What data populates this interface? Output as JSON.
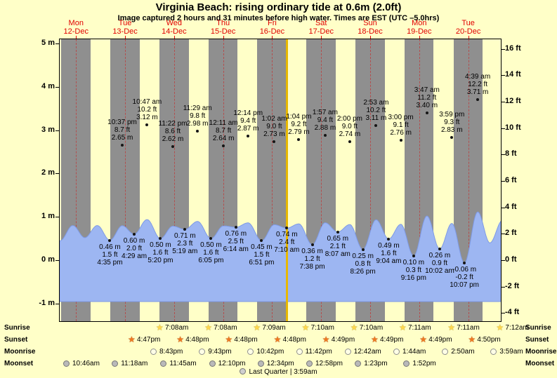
{
  "title": "Virginia Beach: rising  ordinary tide at 0.6m (2.0ft)",
  "subtitle": "Image captured 2 hours and 31 minutes before high water. Times are EST (UTC –5.0hrs)",
  "days": [
    {
      "day": "Mon",
      "date": "12-Dec"
    },
    {
      "day": "Tue",
      "date": "13-Dec"
    },
    {
      "day": "Wed",
      "date": "14-Dec"
    },
    {
      "day": "Thu",
      "date": "15-Dec"
    },
    {
      "day": "Fri",
      "date": "16-Dec"
    },
    {
      "day": "Sat",
      "date": "17-Dec"
    },
    {
      "day": "Sun",
      "date": "18-Dec"
    },
    {
      "day": "Mon",
      "date": "19-Dec"
    },
    {
      "day": "Tue",
      "date": "20-Dec"
    }
  ],
  "axes": {
    "left": [
      {
        "v": 5,
        "label": "5 m"
      },
      {
        "v": 4,
        "label": "4 m"
      },
      {
        "v": 3,
        "label": "3 m"
      },
      {
        "v": 2,
        "label": "2 m"
      },
      {
        "v": 1,
        "label": "1 m"
      },
      {
        "v": 0,
        "label": "0 m"
      },
      {
        "v": -1,
        "label": "-1 m"
      }
    ],
    "right": [
      {
        "v": 16,
        "label": "16 ft"
      },
      {
        "v": 14,
        "label": "14 ft"
      },
      {
        "v": 12,
        "label": "12 ft"
      },
      {
        "v": 10,
        "label": "10 ft"
      },
      {
        "v": 8,
        "label": "8 ft"
      },
      {
        "v": 6,
        "label": "6 ft"
      },
      {
        "v": 4,
        "label": "4 ft"
      },
      {
        "v": 2,
        "label": "2 ft"
      },
      {
        "v": 0,
        "label": "0 ft"
      },
      {
        "v": -2,
        "label": "-2 ft"
      },
      {
        "v": -4,
        "label": "-4 ft"
      }
    ]
  },
  "chart_data": {
    "type": "area",
    "title": "Virginia Beach tide height, Mon 12-Dec to Tue 20-Dec",
    "x_axis": "time in hours from Mon 12-Dec 00:00 (EST)",
    "y_axis_left": "tide height (m)",
    "y_axis_right": "tide height (ft)",
    "ylim_m": [
      -1,
      5
    ],
    "ylim_ft": [
      -4,
      16
    ],
    "now_marker_t_hours": 103.1,
    "high_tides": [
      {
        "t": 22.62,
        "h": 2.65,
        "time": "10:37 pm",
        "ft": "8.7 ft",
        "m": "2.65 m"
      },
      {
        "t": 34.78,
        "h": 3.12,
        "time": "10:47 am",
        "ft": "10.2 ft",
        "m": "3.12 m"
      },
      {
        "t": 47.37,
        "h": 2.62,
        "time": "11:22 pm",
        "ft": "8.6 ft",
        "m": "2.62 m"
      },
      {
        "t": 59.48,
        "h": 2.98,
        "time": "11:29 am",
        "ft": "9.8 ft",
        "m": "2.98 m"
      },
      {
        "t": 72.18,
        "h": 2.64,
        "time": "12:11 am",
        "ft": "8.7 ft",
        "m": "2.64 m"
      },
      {
        "t": 84.23,
        "h": 2.87,
        "time": "12:14 pm",
        "ft": "9.4 ft",
        "m": "2.87 m"
      },
      {
        "t": 97.03,
        "h": 2.73,
        "time": "1:02 am",
        "ft": "9.0 ft",
        "m": "2.73 m"
      },
      {
        "t": 109.07,
        "h": 2.79,
        "time": "1:04 pm",
        "ft": "9.2 ft",
        "m": "2.79 m"
      },
      {
        "t": 121.95,
        "h": 2.88,
        "time": "1:57 am",
        "ft": "9.4 ft",
        "m": "2.88 m"
      },
      {
        "t": 134.0,
        "h": 2.74,
        "time": "2:00 pm",
        "ft": "9.0 ft",
        "m": "2.74 m"
      },
      {
        "t": 146.88,
        "h": 3.11,
        "time": "2:53 am",
        "ft": "10.2 ft",
        "m": "3.11 m"
      },
      {
        "t": 159.0,
        "h": 2.76,
        "time": "3:00 pm",
        "ft": "9.1 ft",
        "m": "2.76 m"
      },
      {
        "t": 171.78,
        "h": 3.4,
        "time": "3:47 am",
        "ft": "11.2 ft",
        "m": "3.40 m"
      },
      {
        "t": 183.98,
        "h": 2.83,
        "time": "3:59 pm",
        "ft": "9.3 ft",
        "m": "2.83 m"
      },
      {
        "t": 196.65,
        "h": 3.71,
        "time": "4:39 am",
        "ft": "12.2 ft",
        "m": "3.71 m"
      }
    ],
    "low_tides": [
      {
        "t": 16.58,
        "h": 0.46,
        "m": "0.46 m",
        "ft": "1.5 ft",
        "time": "4:35 pm"
      },
      {
        "t": 28.48,
        "h": 0.6,
        "m": "0.60 m",
        "ft": "2.0 ft",
        "time": "4:29 am"
      },
      {
        "t": 41.33,
        "h": 0.5,
        "m": "0.50 m",
        "ft": "1.6 ft",
        "time": "5:20 pm"
      },
      {
        "t": 53.32,
        "h": 0.71,
        "m": "0.71 m",
        "ft": "2.3 ft",
        "time": "5:19 am"
      },
      {
        "t": 66.08,
        "h": 0.5,
        "m": "0.50 m",
        "ft": "1.6 ft",
        "time": "6:05 pm"
      },
      {
        "t": 78.23,
        "h": 0.76,
        "m": "0.76 m",
        "ft": "2.5 ft",
        "time": "6:14 am"
      },
      {
        "t": 90.85,
        "h": 0.45,
        "m": "0.45 m",
        "ft": "1.5 ft",
        "time": "6:51 pm"
      },
      {
        "t": 103.17,
        "h": 0.74,
        "m": "0.74 m",
        "ft": "2.4 ft",
        "time": "7:10 am"
      },
      {
        "t": 115.63,
        "h": 0.36,
        "m": "0.36 m",
        "ft": "1.2 ft",
        "time": "7:38 pm"
      },
      {
        "t": 128.12,
        "h": 0.65,
        "m": "0.65 m",
        "ft": "2.1 ft",
        "time": "8:07 am"
      },
      {
        "t": 140.43,
        "h": 0.25,
        "m": "0.25 m",
        "ft": "0.8 ft",
        "time": "8:26 pm"
      },
      {
        "t": 153.07,
        "h": 0.49,
        "m": "0.49 m",
        "ft": "1.6 ft",
        "time": "9:04 am"
      },
      {
        "t": 165.27,
        "h": 0.1,
        "m": "0.10 m",
        "ft": "0.3 ft",
        "time": "9:16 pm"
      },
      {
        "t": 178.03,
        "h": 0.26,
        "m": "0.26 m",
        "ft": "0.9 ft",
        "time": "10:02 am"
      },
      {
        "t": 190.12,
        "h": -0.06,
        "m": "-0.06 m",
        "ft": "-0.2 ft",
        "time": "10:07 pm"
      }
    ]
  },
  "astro": {
    "rows": [
      {
        "label": "Sunrise",
        "icon": "sunrise-star-icon",
        "times": [
          "7:08am",
          "7:08am",
          "7:09am",
          "7:10am",
          "7:10am",
          "7:11am",
          "7:11am",
          "7:12am"
        ]
      },
      {
        "label": "Sunset",
        "icon": "sunset-star-icon",
        "times": [
          "4:47pm",
          "4:48pm",
          "4:48pm",
          "4:48pm",
          "4:49pm",
          "4:49pm",
          "4:49pm",
          "4:50pm"
        ]
      },
      {
        "label": "Moonrise",
        "icon": "moonrise-circle-icon",
        "times": [
          "8:43pm",
          "9:43pm",
          "10:42pm",
          "11:42pm",
          "12:42am",
          "1:44am",
          "2:50am",
          "3:59am"
        ]
      },
      {
        "label": "Moonset",
        "icon": "moonset-circle-icon",
        "times": [
          "10:46am",
          "11:18am",
          "11:45am",
          "12:10pm",
          "12:34pm",
          "12:58pm",
          "1:23pm",
          "1:52pm"
        ]
      }
    ],
    "moon_phase": "Last Quarter | 3:59am"
  },
  "colors": {
    "background": "#ffffc8",
    "night_band": "#8f8f8f",
    "tide_fill": "#9db6f2",
    "tide_stroke": "#7e9ae6",
    "day_label_red": "#e00000",
    "now_line_gold": "#e8b800",
    "sunrise_star": "#ffd84d",
    "sunset_star": "#f07820",
    "moonrise_fill": "#ffffe6",
    "moonset_fill": "#b9b9b9"
  }
}
